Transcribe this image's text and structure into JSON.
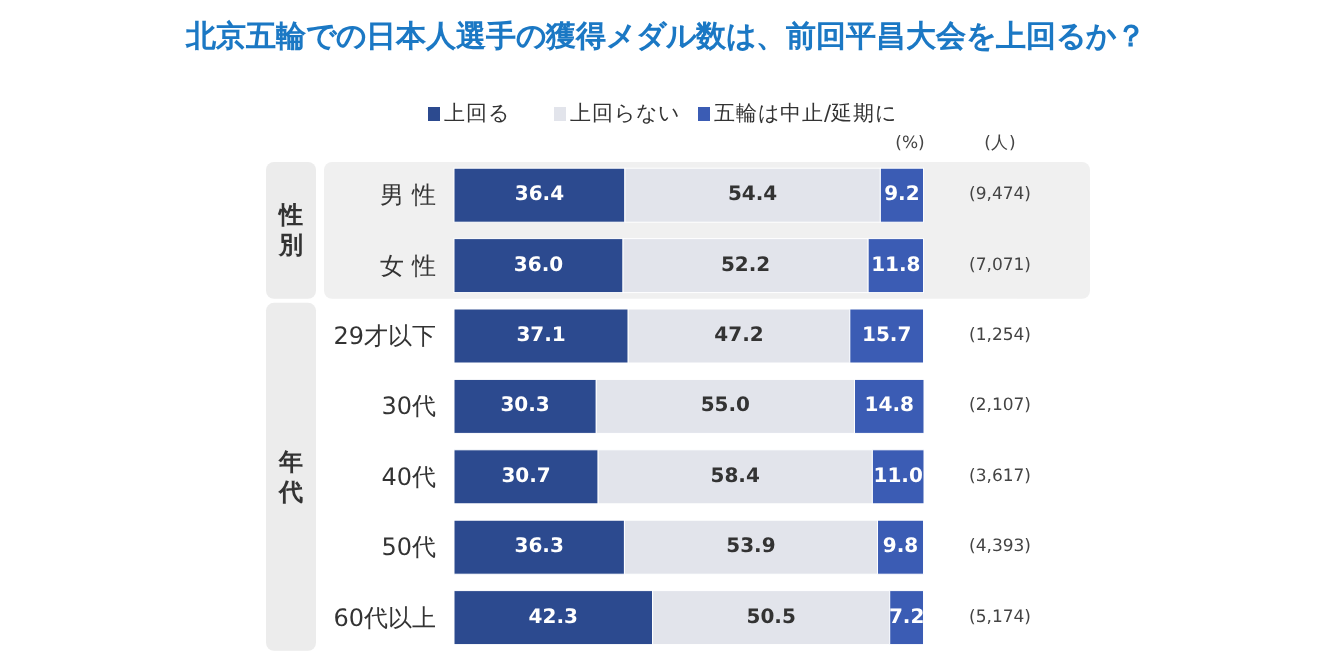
{
  "chart_data": {
    "type": "bar",
    "orientation": "horizontal",
    "stacked": true,
    "legend": "top",
    "title": "北京五輪での日本人選手の獲得メダル数は、前回平昌大会を上回るか？",
    "categories": [
      "男 性",
      "女 性",
      "29才以下",
      "30代",
      "40代",
      "50代",
      "60代以上"
    ],
    "series": [
      {
        "name": "上回る",
        "color": "#2c4a8f",
        "values": [
          36.4,
          36.0,
          37.1,
          30.3,
          30.7,
          36.3,
          42.3
        ],
        "value_labels": [
          "36.4",
          "36.0",
          "37.1",
          "30.3",
          "30.7",
          "36.3",
          "42.3"
        ]
      },
      {
        "name": "上回らない",
        "color": "#e2e4eb",
        "values": [
          54.4,
          52.2,
          47.2,
          55.0,
          58.4,
          53.9,
          50.5
        ],
        "value_labels": [
          "54.4",
          "52.2",
          "47.2",
          "55.0",
          "58.4",
          "53.9",
          "50.5"
        ]
      },
      {
        "name": "五輪は中止/延期に",
        "color": "#3b5cb4",
        "values": [
          9.2,
          11.8,
          15.7,
          14.8,
          11.0,
          9.8,
          7.2
        ],
        "value_labels": [
          "9.2",
          "11.8",
          "15.7",
          "14.8",
          "11.0",
          "9.8",
          "7.2"
        ]
      }
    ],
    "annotations": [
      "(%)",
      "(人)",
      "性別",
      "年代",
      "(9,474)",
      "(7,071)",
      "(1,254)",
      "(2,107)",
      "(3,617)",
      "(4,393)",
      "(5,174)"
    ]
  }
}
